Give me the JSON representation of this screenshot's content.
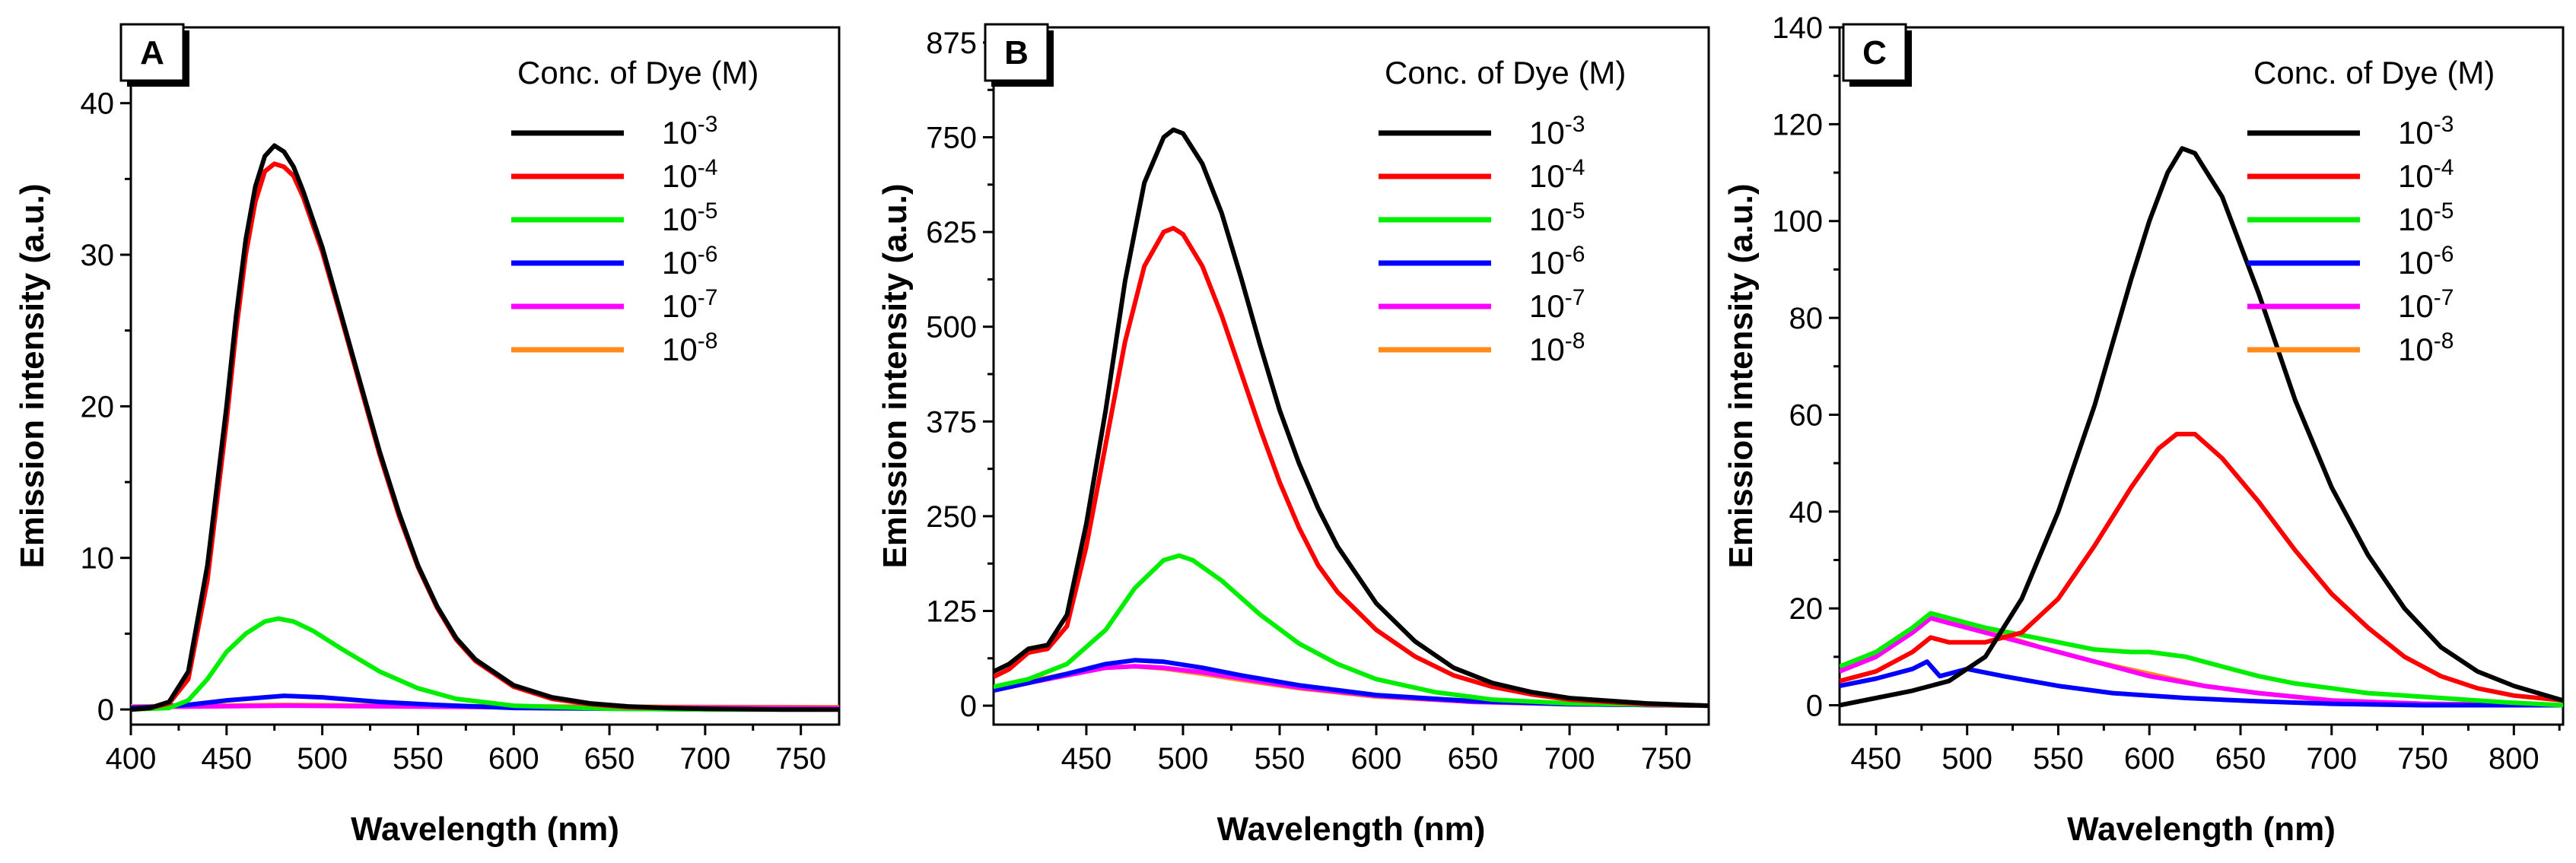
{
  "chart_data": [
    {
      "panel_label": "A",
      "type": "line",
      "xlabel": "Wavelength (nm)",
      "ylabel": "Emission intensity (a.u.)",
      "xlim": [
        400,
        770
      ],
      "ylim": [
        -1,
        45
      ],
      "xticks": [
        400,
        450,
        500,
        550,
        600,
        650,
        700,
        750
      ],
      "yticks": [
        0,
        10,
        20,
        30,
        40
      ],
      "legend_title": "Conc. of Dye (M)",
      "series": [
        {
          "name": "10-3",
          "base": "10",
          "exp": "-3",
          "color": "#000000",
          "x": [
            400,
            410,
            420,
            430,
            440,
            450,
            455,
            460,
            465,
            470,
            475,
            480,
            485,
            490,
            500,
            510,
            520,
            530,
            540,
            550,
            560,
            570,
            580,
            600,
            620,
            640,
            660,
            680,
            700,
            740,
            770
          ],
          "y": [
            0,
            0.1,
            0.5,
            2.5,
            9.5,
            20,
            26,
            31,
            34.5,
            36.5,
            37.2,
            36.8,
            35.8,
            34.2,
            30.5,
            26,
            21.5,
            17,
            13,
            9.5,
            6.8,
            4.7,
            3.3,
            1.6,
            0.8,
            0.4,
            0.2,
            0.1,
            0.05,
            0,
            0
          ]
        },
        {
          "name": "10-4",
          "base": "10",
          "exp": "-4",
          "color": "#ff0000",
          "x": [
            400,
            410,
            420,
            430,
            440,
            450,
            455,
            460,
            465,
            470,
            475,
            480,
            485,
            490,
            500,
            510,
            520,
            530,
            540,
            550,
            560,
            570,
            580,
            600,
            620,
            640,
            660,
            680,
            700,
            740,
            770
          ],
          "y": [
            0,
            0.1,
            0.4,
            2.0,
            8.5,
            19,
            25,
            30,
            33.5,
            35.5,
            36,
            35.8,
            35.2,
            33.8,
            30.2,
            25.8,
            21.3,
            16.8,
            12.8,
            9.4,
            6.7,
            4.6,
            3.2,
            1.5,
            0.7,
            0.35,
            0.15,
            0.1,
            0.05,
            0,
            0
          ]
        },
        {
          "name": "10-5",
          "base": "10",
          "exp": "-5",
          "color": "#00ee00",
          "x": [
            400,
            420,
            430,
            440,
            450,
            460,
            470,
            477,
            485,
            495,
            510,
            530,
            550,
            570,
            600,
            650,
            700,
            770
          ],
          "y": [
            0,
            0.1,
            0.6,
            2,
            3.8,
            5.0,
            5.8,
            6.0,
            5.8,
            5.2,
            4.0,
            2.5,
            1.4,
            0.7,
            0.25,
            0.05,
            0,
            0
          ]
        },
        {
          "name": "10-6",
          "base": "10",
          "exp": "-6",
          "color": "#0000ff",
          "x": [
            400,
            430,
            450,
            470,
            480,
            500,
            530,
            560,
            600,
            700,
            770
          ],
          "y": [
            0.1,
            0.3,
            0.6,
            0.8,
            0.9,
            0.8,
            0.5,
            0.3,
            0.1,
            0,
            0
          ]
        },
        {
          "name": "10-7",
          "base": "10",
          "exp": "-7",
          "color": "#ff00ff",
          "x": [
            400,
            480,
            600,
            770
          ],
          "y": [
            0.15,
            0.25,
            0.15,
            0.1
          ]
        },
        {
          "name": "10-8",
          "base": "10",
          "exp": "-8",
          "color": "#ff8c1a",
          "x": [
            400,
            480,
            600,
            770
          ],
          "y": [
            0.2,
            0.3,
            0.2,
            0.15
          ]
        }
      ]
    },
    {
      "panel_label": "B",
      "type": "line",
      "xlabel": "Wavelength (nm)",
      "ylabel": "Emission intensity (a.u.)",
      "xlim": [
        402,
        772
      ],
      "ylim": [
        -25,
        895
      ],
      "xticks": [
        450,
        500,
        550,
        600,
        650,
        700,
        750
      ],
      "yticks": [
        0,
        125,
        250,
        375,
        500,
        625,
        750,
        875
      ],
      "legend_title": "Conc. of Dye (M)",
      "series": [
        {
          "name": "10-3",
          "base": "10",
          "exp": "-3",
          "color": "#000000",
          "x": [
            402,
            410,
            420,
            430,
            440,
            450,
            460,
            470,
            480,
            490,
            495,
            500,
            510,
            520,
            530,
            540,
            550,
            560,
            570,
            580,
            600,
            620,
            640,
            660,
            680,
            700,
            740,
            772
          ],
          "y": [
            45,
            55,
            75,
            80,
            120,
            240,
            390,
            560,
            690,
            750,
            760,
            755,
            715,
            650,
            565,
            475,
            390,
            320,
            260,
            210,
            135,
            85,
            50,
            30,
            18,
            10,
            3,
            0
          ]
        },
        {
          "name": "10-4",
          "base": "10",
          "exp": "-4",
          "color": "#ff0000",
          "x": [
            402,
            410,
            420,
            430,
            440,
            450,
            460,
            470,
            480,
            490,
            495,
            500,
            510,
            520,
            530,
            540,
            550,
            560,
            570,
            580,
            600,
            620,
            640,
            660,
            680,
            700,
            740,
            772
          ],
          "y": [
            38,
            48,
            70,
            75,
            105,
            210,
            345,
            480,
            580,
            625,
            630,
            622,
            580,
            515,
            440,
            365,
            295,
            235,
            185,
            150,
            100,
            65,
            40,
            25,
            15,
            8,
            2,
            0
          ]
        },
        {
          "name": "10-5",
          "base": "10",
          "exp": "-5",
          "color": "#00ee00",
          "x": [
            402,
            420,
            440,
            460,
            475,
            490,
            498,
            505,
            520,
            540,
            560,
            580,
            600,
            630,
            660,
            700,
            772
          ],
          "y": [
            25,
            35,
            55,
            100,
            155,
            192,
            198,
            192,
            165,
            120,
            82,
            55,
            35,
            18,
            8,
            3,
            0
          ]
        },
        {
          "name": "10-6",
          "base": "10",
          "exp": "-6",
          "color": "#0000ff",
          "x": [
            402,
            420,
            440,
            460,
            475,
            490,
            510,
            530,
            560,
            600,
            650,
            700,
            772
          ],
          "y": [
            20,
            30,
            42,
            55,
            60,
            58,
            50,
            40,
            27,
            14,
            6,
            2,
            0
          ]
        },
        {
          "name": "10-7",
          "base": "10",
          "exp": "-7",
          "color": "#ff00ff",
          "x": [
            402,
            420,
            440,
            460,
            475,
            490,
            510,
            530,
            560,
            600,
            650,
            700,
            772
          ],
          "y": [
            20,
            30,
            40,
            50,
            52,
            50,
            44,
            36,
            24,
            13,
            5,
            2,
            0
          ]
        },
        {
          "name": "10-8",
          "base": "10",
          "exp": "-8",
          "color": "#ff8c1a",
          "x": [
            402,
            420,
            440,
            460,
            475,
            490,
            510,
            530,
            560,
            600,
            650,
            700,
            772
          ],
          "y": [
            22,
            32,
            42,
            50,
            52,
            49,
            42,
            34,
            23,
            12,
            5,
            2,
            0
          ]
        }
      ]
    },
    {
      "panel_label": "C",
      "type": "line",
      "xlabel": "Wavelength (nm)",
      "ylabel": "Emission intensity (a.u.)",
      "xlim": [
        430,
        827
      ],
      "ylim": [
        -4,
        140
      ],
      "xticks": [
        450,
        500,
        550,
        600,
        650,
        700,
        750,
        800
      ],
      "yticks": [
        0,
        20,
        40,
        60,
        80,
        100,
        120,
        140
      ],
      "legend_title": "Conc. of Dye (M)",
      "series": [
        {
          "name": "10-3",
          "base": "10",
          "exp": "-3",
          "color": "#000000",
          "x": [
            430,
            450,
            470,
            490,
            510,
            530,
            550,
            570,
            590,
            600,
            610,
            618,
            625,
            640,
            660,
            680,
            700,
            720,
            740,
            760,
            780,
            800,
            827
          ],
          "y": [
            0,
            1.5,
            3,
            5,
            10,
            22,
            40,
            62,
            88,
            100,
            110,
            115,
            114,
            105,
            85,
            63,
            45,
            31,
            20,
            12,
            7,
            4,
            1
          ]
        },
        {
          "name": "10-4",
          "base": "10",
          "exp": "-4",
          "color": "#ff0000",
          "x": [
            430,
            450,
            470,
            480,
            490,
            510,
            530,
            550,
            570,
            590,
            605,
            615,
            625,
            640,
            660,
            680,
            700,
            720,
            740,
            760,
            780,
            800,
            827
          ],
          "y": [
            5,
            7,
            11,
            14,
            13,
            13,
            15,
            22,
            33,
            45,
            53,
            56,
            56,
            51,
            42,
            32,
            23,
            16,
            10,
            6,
            3.5,
            2,
            1
          ]
        },
        {
          "name": "10-5",
          "base": "10",
          "exp": "-5",
          "color": "#00ee00",
          "x": [
            430,
            450,
            470,
            480,
            490,
            510,
            530,
            550,
            570,
            590,
            600,
            620,
            640,
            660,
            680,
            700,
            720,
            740,
            760,
            780,
            800,
            827
          ],
          "y": [
            8,
            11,
            16,
            19,
            18,
            16,
            14.5,
            13,
            11.5,
            11,
            11,
            10,
            8,
            6,
            4.5,
            3.5,
            2.5,
            2,
            1.5,
            1,
            0.5,
            0
          ]
        },
        {
          "name": "10-6",
          "base": "10",
          "exp": "-6",
          "color": "#0000ff",
          "x": [
            430,
            450,
            470,
            478,
            485,
            500,
            520,
            550,
            580,
            620,
            660,
            700,
            750,
            827
          ],
          "y": [
            4,
            5.5,
            7.5,
            9,
            6,
            7.5,
            6,
            4,
            2.5,
            1.5,
            0.8,
            0.3,
            0,
            0
          ]
        },
        {
          "name": "10-7",
          "base": "10",
          "exp": "-7",
          "color": "#ff00ff",
          "x": [
            430,
            450,
            470,
            480,
            490,
            510,
            540,
            570,
            600,
            630,
            660,
            700,
            750,
            827
          ],
          "y": [
            7,
            10,
            15,
            18,
            17,
            15,
            12,
            9,
            6,
            4,
            2.5,
            1,
            0.3,
            0
          ]
        },
        {
          "name": "10-8",
          "base": "10",
          "exp": "-8",
          "color": "#ff8c1a",
          "x": [
            430,
            450,
            470,
            480,
            490,
            510,
            540,
            570,
            600,
            630,
            660,
            700,
            750,
            827
          ],
          "y": [
            7,
            10,
            15,
            18,
            17,
            15.5,
            12,
            9,
            6.5,
            4,
            2.5,
            1,
            0.3,
            0
          ]
        }
      ]
    }
  ]
}
